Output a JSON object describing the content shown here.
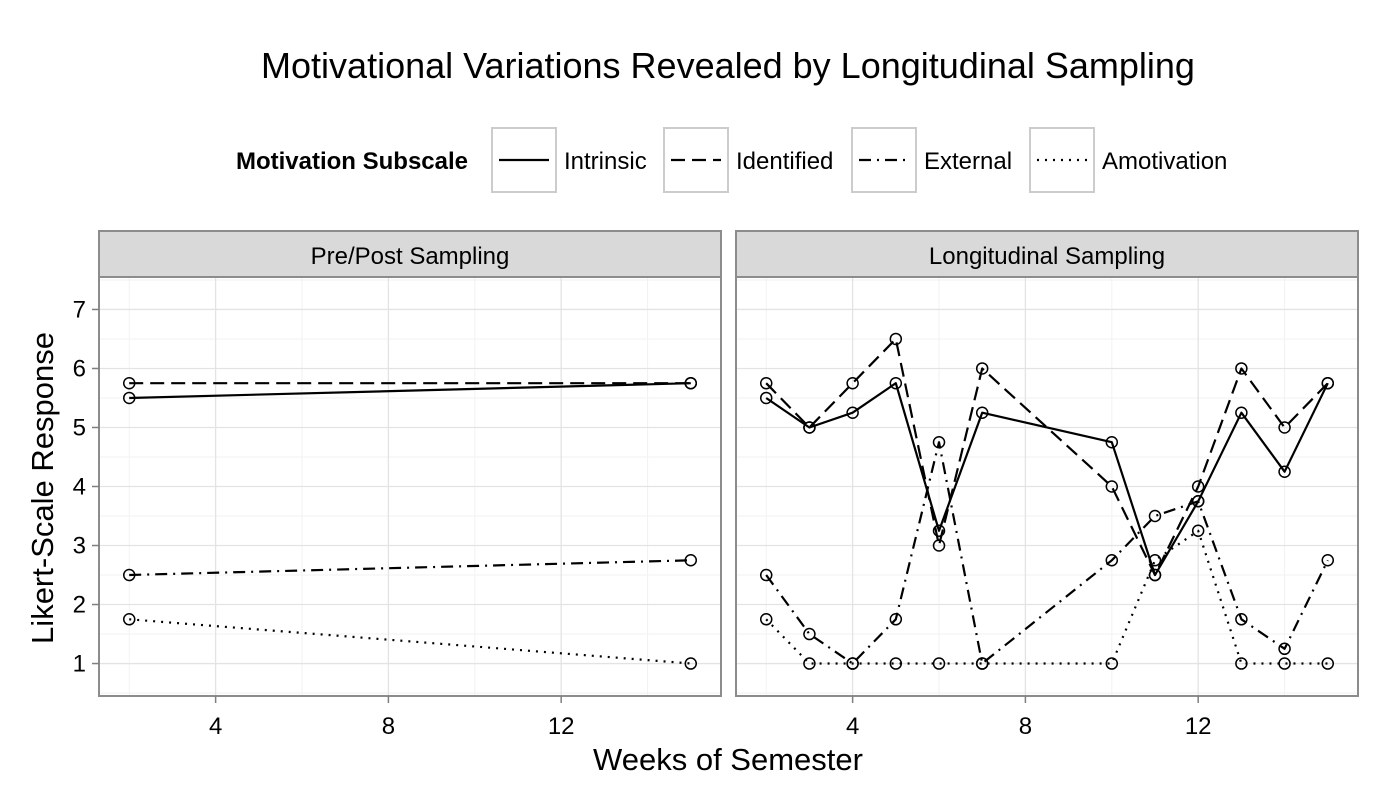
{
  "chart_data": {
    "type": "line",
    "title": "Motivational Variations Revealed by Longitudinal Sampling",
    "xlabel": "Weeks of Semester",
    "ylabel": "Likert-Scale Response",
    "xlim": [
      1.3,
      15.7
    ],
    "ylim": [
      0.45,
      7.55
    ],
    "x_ticks": [
      4,
      8,
      12
    ],
    "y_ticks": [
      1,
      2,
      3,
      4,
      5,
      6,
      7
    ],
    "grid": true,
    "legend": {
      "title": "Motivation Subscale",
      "position": "top",
      "entries": [
        {
          "label": "Intrinsic",
          "style": "solid"
        },
        {
          "label": "Identified",
          "style": "dashed"
        },
        {
          "label": "External",
          "style": "dashdot"
        },
        {
          "label": "Amotivation",
          "style": "dotted"
        }
      ]
    },
    "panels": [
      {
        "title": "Pre/Post Sampling",
        "series": [
          {
            "name": "Intrinsic",
            "x": [
              2,
              15
            ],
            "y": [
              5.5,
              5.75
            ]
          },
          {
            "name": "Identified",
            "x": [
              2,
              15
            ],
            "y": [
              5.75,
              5.75
            ]
          },
          {
            "name": "External",
            "x": [
              2,
              15
            ],
            "y": [
              2.5,
              2.75
            ]
          },
          {
            "name": "Amotivation",
            "x": [
              2,
              15
            ],
            "y": [
              1.75,
              1.0
            ]
          }
        ]
      },
      {
        "title": "Longitudinal Sampling",
        "series": [
          {
            "name": "Intrinsic",
            "x": [
              2,
              3,
              4,
              5,
              6,
              7,
              10,
              11,
              12,
              13,
              14,
              15
            ],
            "y": [
              5.5,
              5.0,
              5.25,
              5.75,
              3.25,
              5.25,
              4.75,
              2.5,
              3.75,
              5.25,
              4.25,
              5.75
            ]
          },
          {
            "name": "Identified",
            "x": [
              2,
              3,
              4,
              5,
              6,
              7,
              10,
              11,
              12,
              13,
              14,
              15
            ],
            "y": [
              5.75,
              5.0,
              5.75,
              6.5,
              3.0,
              6.0,
              4.0,
              2.5,
              4.0,
              6.0,
              5.0,
              5.75
            ]
          },
          {
            "name": "External",
            "x": [
              2,
              3,
              4,
              5,
              6,
              7,
              10,
              11,
              12,
              13,
              14,
              15
            ],
            "y": [
              2.5,
              1.5,
              1.0,
              1.75,
              4.75,
              1.0,
              2.75,
              3.5,
              3.75,
              1.75,
              1.25,
              2.75
            ]
          },
          {
            "name": "Amotivation",
            "x": [
              2,
              3,
              4,
              5,
              6,
              7,
              10,
              11,
              12,
              13,
              14,
              15
            ],
            "y": [
              1.75,
              1.0,
              1.0,
              1.0,
              1.0,
              1.0,
              1.0,
              2.75,
              3.25,
              1.0,
              1.0,
              1.0
            ]
          }
        ]
      }
    ]
  }
}
